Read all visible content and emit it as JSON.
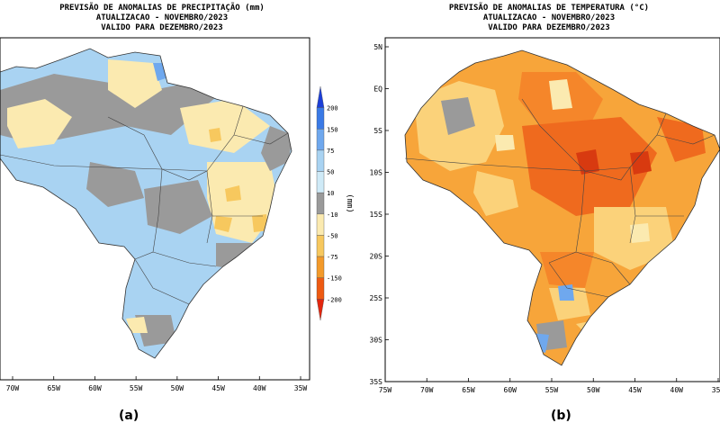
{
  "panel_a": {
    "title_lines": [
      "PREVISÃO DE ANOMALIAS DE PRECIPITAÇÃO (mm)",
      "ATUALIZACAO - NOVEMBRO/2023",
      "VALIDO PARA DEZEMBRO/2023"
    ],
    "x_ticks": [
      "70W",
      "65W",
      "60W",
      "55W",
      "50W",
      "45W",
      "40W",
      "35W"
    ],
    "legend": {
      "unit": "(mm)",
      "levels": [
        "200",
        "150",
        "75",
        "50",
        "10",
        "-10",
        "-50",
        "-75",
        "-150",
        "-200"
      ],
      "colors": [
        "#1c3fd8",
        "#3a7ae6",
        "#6fa8ee",
        "#a9d3f2",
        "#cfeaf7",
        "#9a9a9a",
        "#fbeab0",
        "#f7c85e",
        "#f39a2a",
        "#ee5a12",
        "#e3260e"
      ]
    },
    "caption": "(a)"
  },
  "panel_b": {
    "title_lines": [
      "PREVISÃO DE ANOMALIAS DE TEMPERATURA (°C)",
      "ATUALIZACAO - NOVEMBRO/2023",
      "VALIDO PARA DEZEMBRO/2023"
    ],
    "x_ticks": [
      "75W",
      "70W",
      "65W",
      "60W",
      "55W",
      "50W",
      "45W",
      "40W",
      "35W"
    ],
    "y_ticks": [
      "5N",
      "EQ",
      "5S",
      "10S",
      "15S",
      "20S",
      "25S",
      "30S",
      "35S"
    ],
    "caption": "(b)"
  }
}
